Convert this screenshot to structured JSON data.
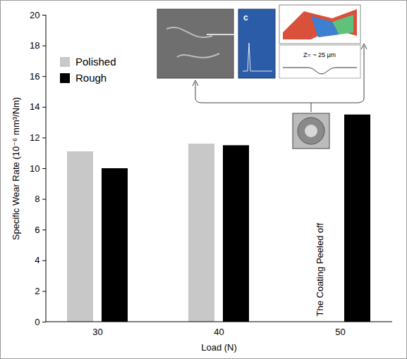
{
  "chart_data": {
    "type": "bar",
    "categories": [
      "30",
      "40",
      "50"
    ],
    "series": [
      {
        "name": "Polished",
        "color": "#c8c8c8",
        "values": [
          11.1,
          11.6,
          null
        ]
      },
      {
        "name": "Rough",
        "color": "#000000",
        "values": [
          10.0,
          11.5,
          13.5
        ]
      }
    ],
    "x_label": "Load (N)",
    "y_label": "Specific Wear Rate (10⁻⁶ mm³/Nm)",
    "ylim": [
      0,
      20
    ],
    "yticks": [
      0,
      2,
      4,
      6,
      8,
      10,
      12,
      14,
      16,
      18,
      20
    ],
    "legend": "top-left",
    "annotations": [
      "The Coating Peeled off",
      "c",
      "Z= ~ 25 µm"
    ]
  }
}
